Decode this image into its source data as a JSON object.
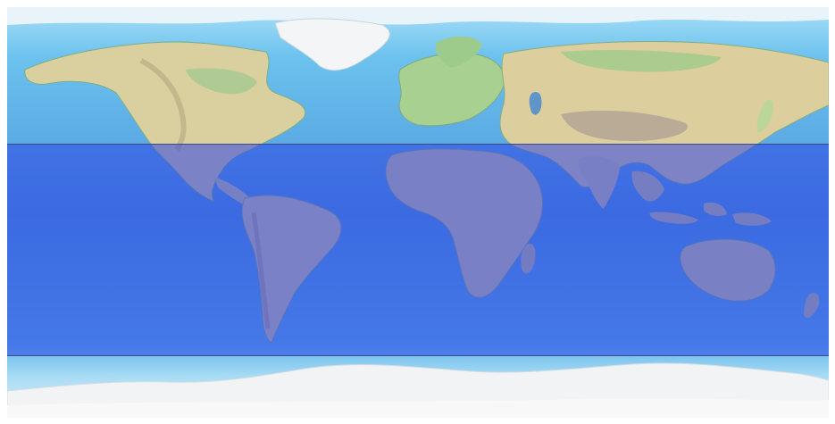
{
  "map": {
    "projection": "equirectangular",
    "style": "shaded relief",
    "colors": {
      "ocean_shallow": "#9fd8f5",
      "ocean": "#5fb4ea",
      "ocean_deep": "#4a90d6",
      "lowland": "#8fc98a",
      "upland": "#e6d7a9",
      "highland": "#c9b89a",
      "ice": "#f2f4f6",
      "selection_fill": "#2d46e6",
      "selection_border": "#3a4a8a"
    }
  },
  "selection": {
    "lat_north": 30,
    "lat_south": -63,
    "lon_west": -180,
    "lon_east": 180
  }
}
